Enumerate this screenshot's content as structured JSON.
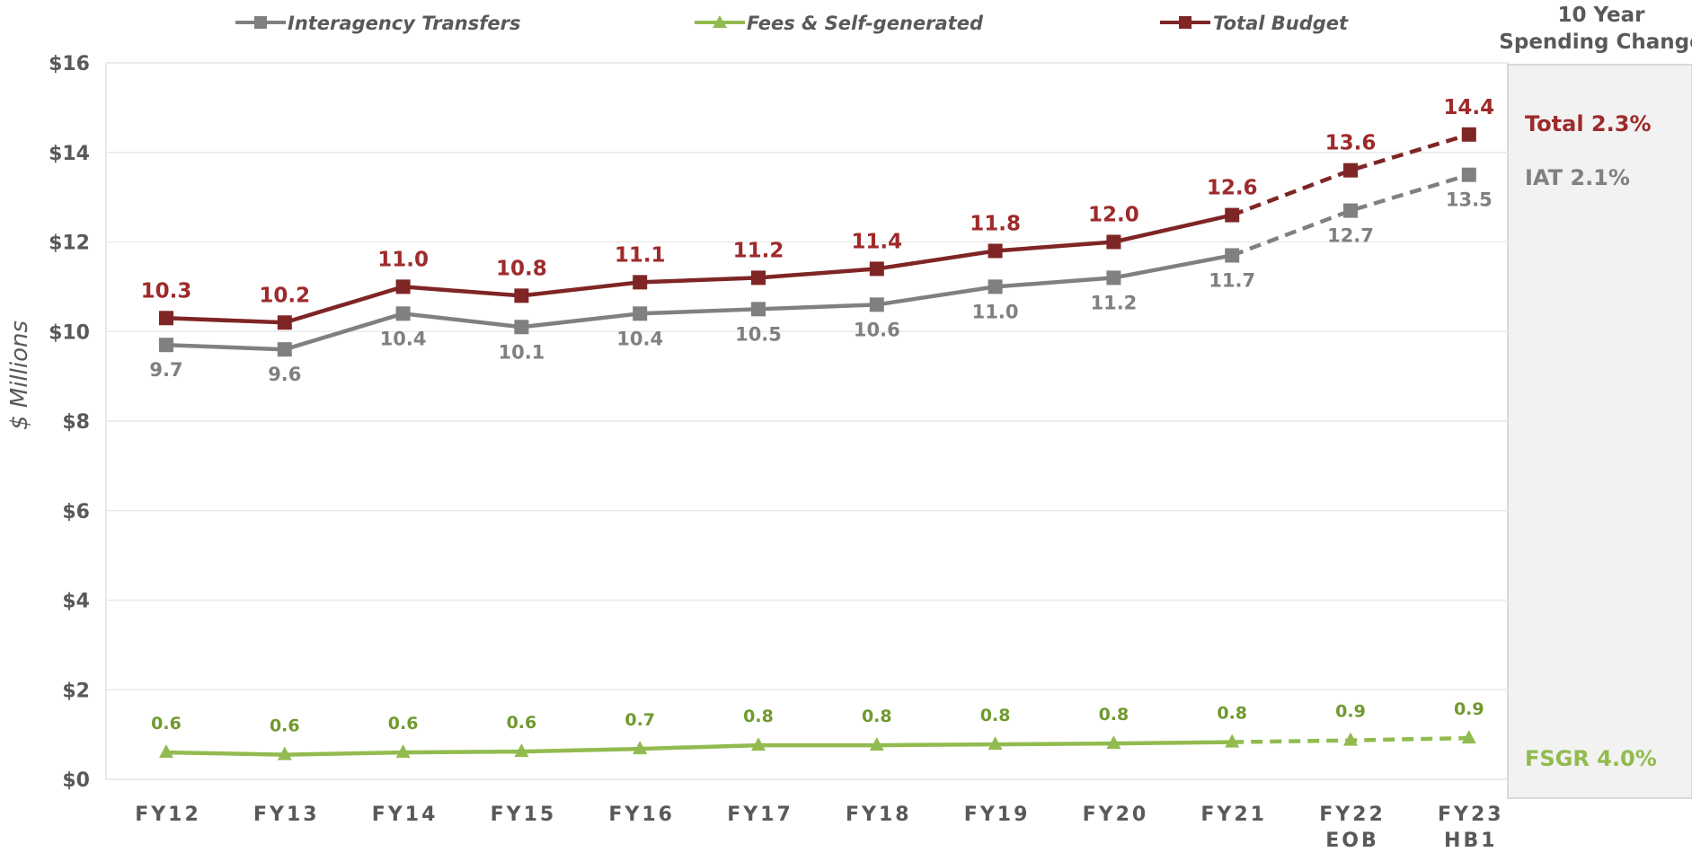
{
  "chart_data": {
    "type": "line",
    "title": "",
    "xlabel": "",
    "ylabel": "$ Millions",
    "ylim": [
      0,
      16
    ],
    "y_ticks": [
      "$0",
      "$2",
      "$4",
      "$6",
      "$8",
      "$10",
      "$12",
      "$14",
      "$16"
    ],
    "y_tick_values": [
      0,
      2,
      4,
      6,
      8,
      10,
      12,
      14,
      16
    ],
    "categories": [
      "FY12",
      "FY13",
      "FY14",
      "FY15",
      "FY16",
      "FY17",
      "FY18",
      "FY19",
      "FY20",
      "FY21",
      "FY22\nEOB",
      "FY23\nHB1"
    ],
    "grid": true,
    "legend_position": "top",
    "projected_from_index": 9,
    "series": [
      {
        "name": "Interagency Transfers",
        "color": "#808080",
        "marker": "square",
        "values": [
          9.7,
          9.6,
          10.4,
          10.1,
          10.4,
          10.5,
          10.6,
          11.0,
          11.2,
          11.7,
          12.7,
          13.5
        ],
        "labels": [
          "9.7",
          "9.6",
          "10.4",
          "10.1",
          "10.4",
          "10.5",
          "10.6",
          "11.0",
          "11.2",
          "11.7",
          "12.7",
          "13.5"
        ],
        "label_position": "below"
      },
      {
        "name": "Fees & Self-generated",
        "color": "#92BB4F",
        "label_color": "#6F9A2E",
        "marker": "triangle",
        "values": [
          0.6,
          0.55,
          0.6,
          0.62,
          0.68,
          0.76,
          0.76,
          0.78,
          0.8,
          0.83,
          0.87,
          0.92
        ],
        "labels": [
          "0.6",
          "0.6",
          "0.6",
          "0.6",
          "0.7",
          "0.8",
          "0.8",
          "0.8",
          "0.8",
          "0.8",
          "0.9",
          "0.9"
        ],
        "label_position": "above"
      },
      {
        "name": "Total Budget",
        "color": "#7F2525",
        "label_color": "#9E2A2B",
        "marker": "square",
        "values": [
          10.3,
          10.2,
          11.0,
          10.8,
          11.1,
          11.2,
          11.4,
          11.8,
          12.0,
          12.6,
          13.6,
          14.4
        ],
        "labels": [
          "10.3",
          "10.2",
          "11.0",
          "10.8",
          "11.1",
          "11.2",
          "11.4",
          "11.8",
          "12.0",
          "12.6",
          "13.6",
          "14.4"
        ],
        "label_position": "above"
      }
    ],
    "side_panel": {
      "title_line1": "10 Year",
      "title_line2": "Spending Change",
      "items": [
        {
          "text": "Total 2.3%",
          "color": "#9E2A2B"
        },
        {
          "text": "IAT 2.1%",
          "color": "#808080"
        },
        {
          "text": "FSGR 4.0%",
          "color": "#92BB4F"
        }
      ]
    }
  }
}
